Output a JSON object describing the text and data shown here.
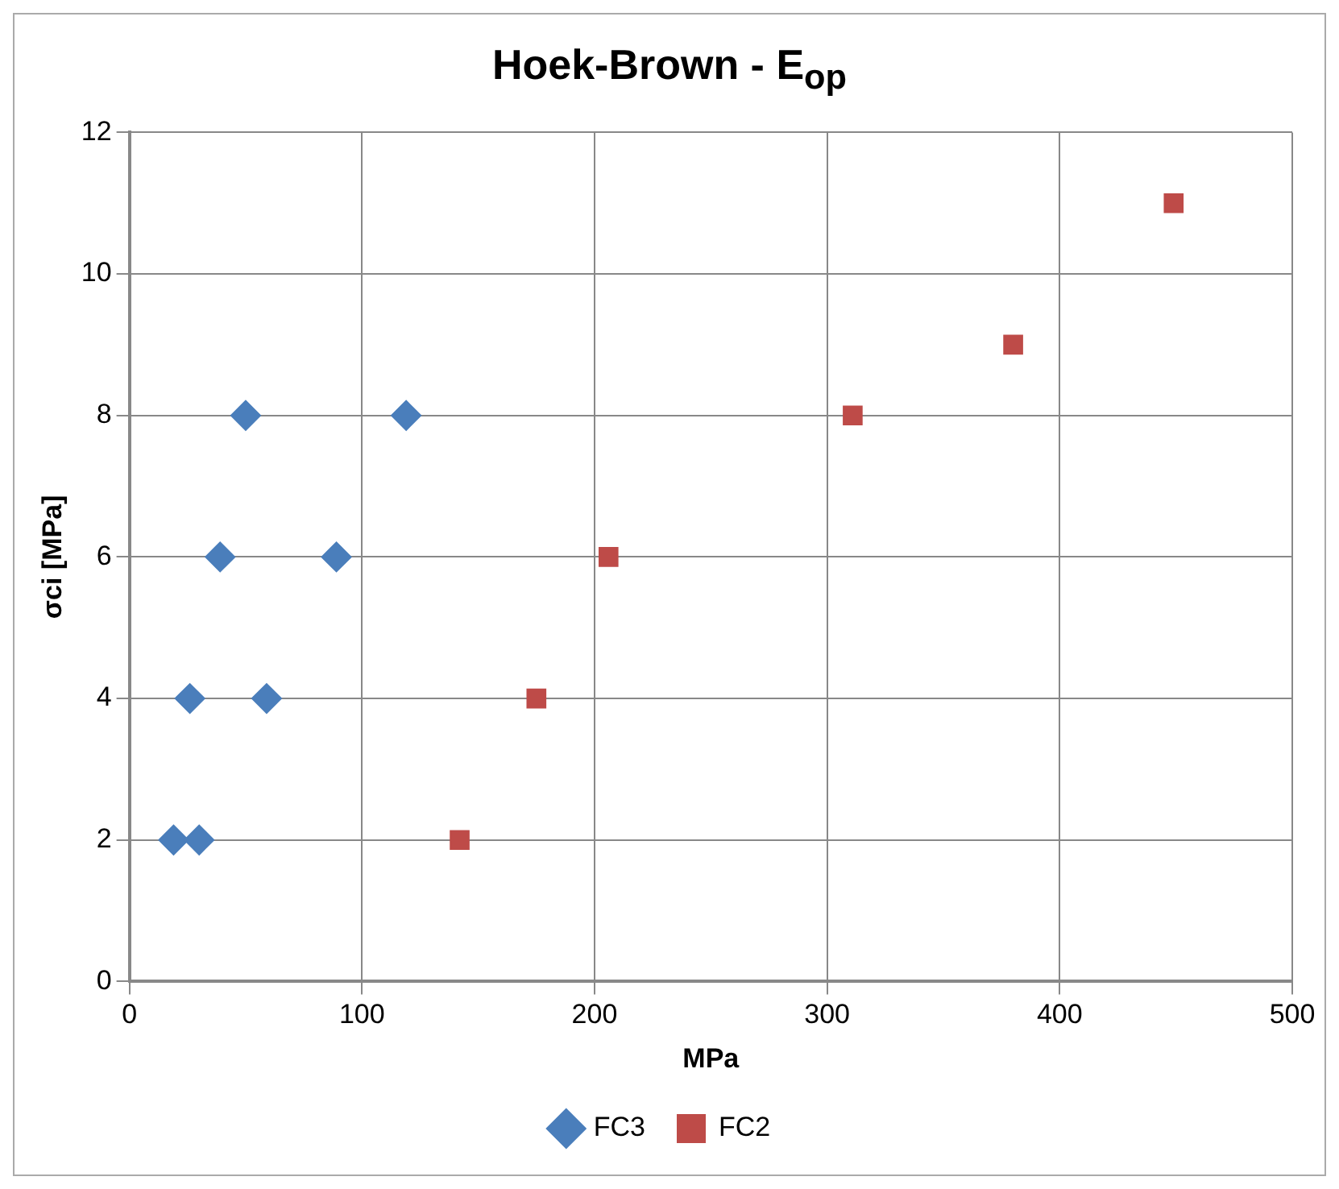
{
  "chart_data": {
    "type": "scatter",
    "title": "Hoek-Brown - E$_{op}$",
    "xlabel": "MPa",
    "ylabel": "σci [MPa]",
    "series": [
      {
        "name": "FC3",
        "color": "#4a7ebb",
        "marker": "diamond",
        "x": [
          19,
          30,
          26,
          59,
          39,
          89,
          50,
          119
        ],
        "values": [
          2,
          2,
          4,
          4,
          6,
          6,
          8,
          8
        ]
      },
      {
        "name": "FC2",
        "color": "#be4b48",
        "marker": "square",
        "x": [
          142,
          175,
          206,
          311,
          380,
          449
        ],
        "values": [
          2,
          4,
          6,
          8,
          9,
          11
        ]
      }
    ],
    "xlim": [
      0,
      500
    ],
    "xticks": [
      0,
      100,
      200,
      300,
      400,
      500
    ],
    "ylim": [
      0,
      12
    ],
    "yticks": [
      0,
      2,
      4,
      6,
      8,
      10,
      12
    ],
    "grid": true,
    "legend": "bottom"
  }
}
